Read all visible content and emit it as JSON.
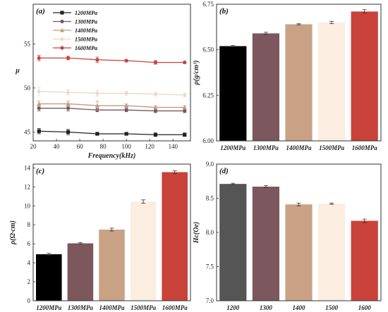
{
  "chart_data": [
    {
      "panel": "(a)",
      "type": "line",
      "xlabel": "Frequency(kHz)",
      "ylabel": "μ",
      "xlim": [
        20,
        155
      ],
      "ylim": [
        44,
        59.5
      ],
      "xticks": [
        20,
        40,
        60,
        80,
        100,
        120,
        140
      ],
      "yticks": [
        45,
        50,
        55
      ],
      "legend_position": "top-left",
      "x": [
        25,
        50,
        75,
        100,
        125,
        150
      ],
      "series": [
        {
          "name": "1200MPa",
          "color": "#222222",
          "marker": "square",
          "values": [
            45.1,
            45.0,
            44.8,
            44.8,
            44.7,
            44.7
          ],
          "err": [
            0.3,
            0.3,
            0.1,
            0.1,
            0.2,
            0.2
          ]
        },
        {
          "name": "1300MPa",
          "color": "#7a5560",
          "marker": "circle",
          "values": [
            47.7,
            47.7,
            47.5,
            47.5,
            47.4,
            47.4
          ],
          "err": [
            0.3,
            0.3,
            0.2,
            0.2,
            0.2,
            0.2
          ]
        },
        {
          "name": "1400MPa",
          "color": "#c39a7c",
          "marker": "triangle",
          "values": [
            48.2,
            48.2,
            48.0,
            48.0,
            47.8,
            47.8
          ],
          "err": [
            0.3,
            0.3,
            0.5,
            0.2,
            0.2,
            0.2
          ]
        },
        {
          "name": "1500MPa",
          "color": "#ecd6c0",
          "marker": "diamond",
          "values": [
            49.6,
            49.5,
            49.4,
            49.4,
            49.3,
            49.2
          ],
          "err": [
            0.5,
            0.3,
            0.3,
            0.2,
            0.2,
            0.2
          ]
        },
        {
          "name": "1600MPa",
          "color": "#c9423a",
          "marker": "circle",
          "values": [
            53.4,
            53.4,
            53.2,
            53.1,
            52.9,
            52.9
          ],
          "err": [
            0.3,
            0.2,
            0.3,
            0.1,
            0.2,
            0.1
          ]
        }
      ]
    },
    {
      "panel": "(b)",
      "type": "bar",
      "ylabel": "ρ(g/cm³)",
      "ylim": [
        6.0,
        6.75
      ],
      "yticks": [
        "6.00",
        "6.25",
        "6.50",
        "6.75"
      ],
      "categories": [
        "1200MPa",
        "1300MPa",
        "1400MPa",
        "1500MPa",
        "1600MPa"
      ],
      "values": [
        6.52,
        6.59,
        6.64,
        6.65,
        6.71
      ],
      "err": [
        0.003,
        0.006,
        0.003,
        0.006,
        0.01
      ],
      "colors": [
        "#000000",
        "#7c575e",
        "#c9a286",
        "#fbeee0",
        "#c9423a"
      ]
    },
    {
      "panel": "(c)",
      "type": "bar",
      "ylabel": "ρ(Ω·cm)",
      "ylim": [
        0,
        14.4
      ],
      "yticks": [
        "0",
        "2",
        "4",
        "6",
        "8",
        "10",
        "12",
        "14"
      ],
      "categories": [
        "1200MPa",
        "1300MPa",
        "1400MPa",
        "1500MPa",
        "1600MPa"
      ],
      "values": [
        4.9,
        6.05,
        7.5,
        10.45,
        13.55
      ],
      "err": [
        0.1,
        0.07,
        0.15,
        0.18,
        0.15
      ],
      "colors": [
        "#000000",
        "#7c575e",
        "#c9a286",
        "#fbeee0",
        "#c9423a"
      ]
    },
    {
      "panel": "(d)",
      "type": "bar",
      "ylabel": "Hc(Oe)",
      "ylim": [
        7.0,
        9.0
      ],
      "yticks": [
        "7.0",
        "7.5",
        "8.0",
        "8.5",
        "9.0"
      ],
      "categories": [
        "1200",
        "1300",
        "1400",
        "1500",
        "1600"
      ],
      "values": [
        8.71,
        8.67,
        8.41,
        8.42,
        8.17
      ],
      "err": [
        0.01,
        0.015,
        0.02,
        0.01,
        0.025
      ],
      "colors": [
        "#555555",
        "#7c575e",
        "#c9a286",
        "#fbeee0",
        "#c9423a"
      ]
    }
  ]
}
